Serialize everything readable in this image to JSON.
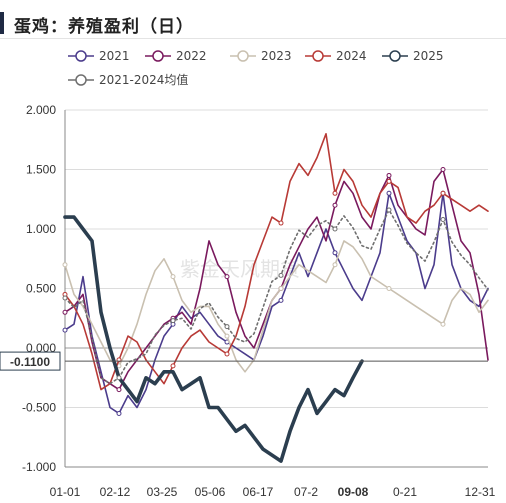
{
  "title": "蛋鸡：养殖盈利（日）",
  "watermark": "紫金天风期货",
  "chart_data": {
    "type": "line",
    "title": "蛋鸡：养殖盈利（日）",
    "x_ticks": [
      "01-01",
      "02-12",
      "03-25",
      "05-06",
      "06-17",
      "07-2",
      "09-08",
      "0-21",
      "12-31"
    ],
    "x_tick_highlight": "09-08",
    "y_ticks": [
      "2.000",
      "1.500",
      "1.000",
      "0.500",
      "0.000",
      "-0.500",
      "-1.000"
    ],
    "y_marker_label": "-0.1100",
    "y_marker_value": -0.11,
    "ylim": [
      -1.0,
      2.0
    ],
    "grid": true,
    "legend_position": "top",
    "series": [
      {
        "name": "2021",
        "color": "#4b3c8c",
        "width": 1.6,
        "values": [
          0.15,
          0.2,
          0.6,
          0.1,
          -0.2,
          -0.5,
          -0.55,
          -0.4,
          -0.5,
          -0.35,
          -0.1,
          0.1,
          0.2,
          0.35,
          0.25,
          0.3,
          0.2,
          0.1,
          0.05,
          0.0,
          -0.05,
          -0.1,
          0.1,
          0.35,
          0.4,
          0.6,
          0.8,
          0.6,
          0.8,
          1.0,
          0.8,
          0.65,
          0.5,
          0.4,
          0.6,
          0.8,
          1.3,
          1.1,
          0.9,
          0.8,
          0.5,
          0.7,
          1.3,
          0.7,
          0.5,
          0.4,
          0.35,
          0.5
        ]
      },
      {
        "name": "2022",
        "color": "#7a1a5e",
        "width": 1.6,
        "values": [
          0.3,
          0.35,
          0.45,
          0.05,
          -0.25,
          -0.3,
          -0.35,
          -0.2,
          -0.1,
          0.0,
          0.1,
          0.2,
          0.25,
          0.3,
          0.2,
          0.5,
          0.9,
          0.7,
          0.6,
          0.3,
          0.1,
          0.0,
          0.2,
          0.4,
          0.5,
          0.7,
          0.85,
          1.0,
          1.1,
          0.9,
          1.2,
          1.4,
          1.3,
          1.1,
          1.0,
          1.3,
          1.45,
          1.2,
          1.1,
          1.0,
          0.95,
          1.4,
          1.5,
          1.2,
          0.9,
          0.8,
          0.45,
          -0.1
        ]
      },
      {
        "name": "2023",
        "color": "#c9c0b0",
        "width": 1.6,
        "values": [
          0.7,
          0.45,
          0.35,
          0.2,
          0.05,
          -0.1,
          -0.15,
          0.0,
          0.2,
          0.45,
          0.65,
          0.75,
          0.6,
          0.4,
          0.3,
          0.35,
          0.35,
          0.2,
          0.1,
          -0.1,
          -0.2,
          -0.1,
          0.15,
          0.4,
          0.5,
          0.6,
          0.7,
          0.65,
          0.6,
          0.55,
          0.7,
          0.9,
          0.85,
          0.75,
          0.6,
          0.55,
          0.5,
          0.45,
          0.4,
          0.35,
          0.3,
          0.25,
          0.2,
          0.4,
          0.5,
          0.45,
          0.3,
          0.4
        ]
      },
      {
        "name": "2024",
        "color": "#b83a36",
        "width": 1.6,
        "values": [
          0.45,
          0.35,
          0.2,
          -0.05,
          -0.35,
          -0.3,
          -0.1,
          0.1,
          0.05,
          -0.1,
          -0.2,
          -0.3,
          -0.15,
          0.0,
          0.1,
          0.15,
          0.05,
          0.0,
          -0.05,
          0.1,
          0.35,
          0.7,
          0.9,
          1.1,
          1.05,
          1.4,
          1.55,
          1.45,
          1.6,
          1.8,
          1.3,
          1.5,
          1.4,
          1.2,
          1.1,
          1.3,
          1.4,
          1.35,
          1.1,
          1.05,
          1.15,
          1.2,
          1.3,
          1.25,
          1.2,
          1.15,
          1.2,
          1.15
        ]
      },
      {
        "name": "2025",
        "color": "#2b3e4f",
        "width": 3.6,
        "values": [
          1.1,
          1.1,
          1.0,
          0.9,
          0.3,
          0.0,
          -0.25,
          -0.35,
          -0.45,
          -0.25,
          -0.3,
          -0.2,
          -0.2,
          -0.35,
          -0.3,
          -0.25,
          -0.5,
          -0.5,
          -0.6,
          -0.7,
          -0.65,
          -0.75,
          -0.85,
          -0.9,
          -0.95,
          -0.7,
          -0.5,
          -0.35,
          -0.55,
          -0.45,
          -0.35,
          -0.4,
          -0.25,
          -0.11
        ]
      },
      {
        "name": "2021-2024均值",
        "color": "#6f6f6f",
        "width": 1.6,
        "dashed": true,
        "values": [
          0.42,
          0.34,
          0.4,
          0.08,
          -0.25,
          -0.3,
          -0.25,
          -0.12,
          -0.09,
          -0.05,
          0.11,
          0.19,
          0.23,
          0.25,
          0.16,
          0.33,
          0.38,
          0.26,
          0.18,
          0.08,
          0.05,
          0.12,
          0.34,
          0.56,
          0.61,
          0.83,
          0.99,
          0.93,
          1.03,
          1.07,
          1.0,
          1.11,
          1.01,
          0.86,
          0.83,
          1.0,
          1.16,
          1.03,
          0.88,
          0.8,
          0.73,
          0.89,
          1.08,
          0.89,
          0.78,
          0.7,
          0.59,
          0.49
        ]
      }
    ]
  }
}
